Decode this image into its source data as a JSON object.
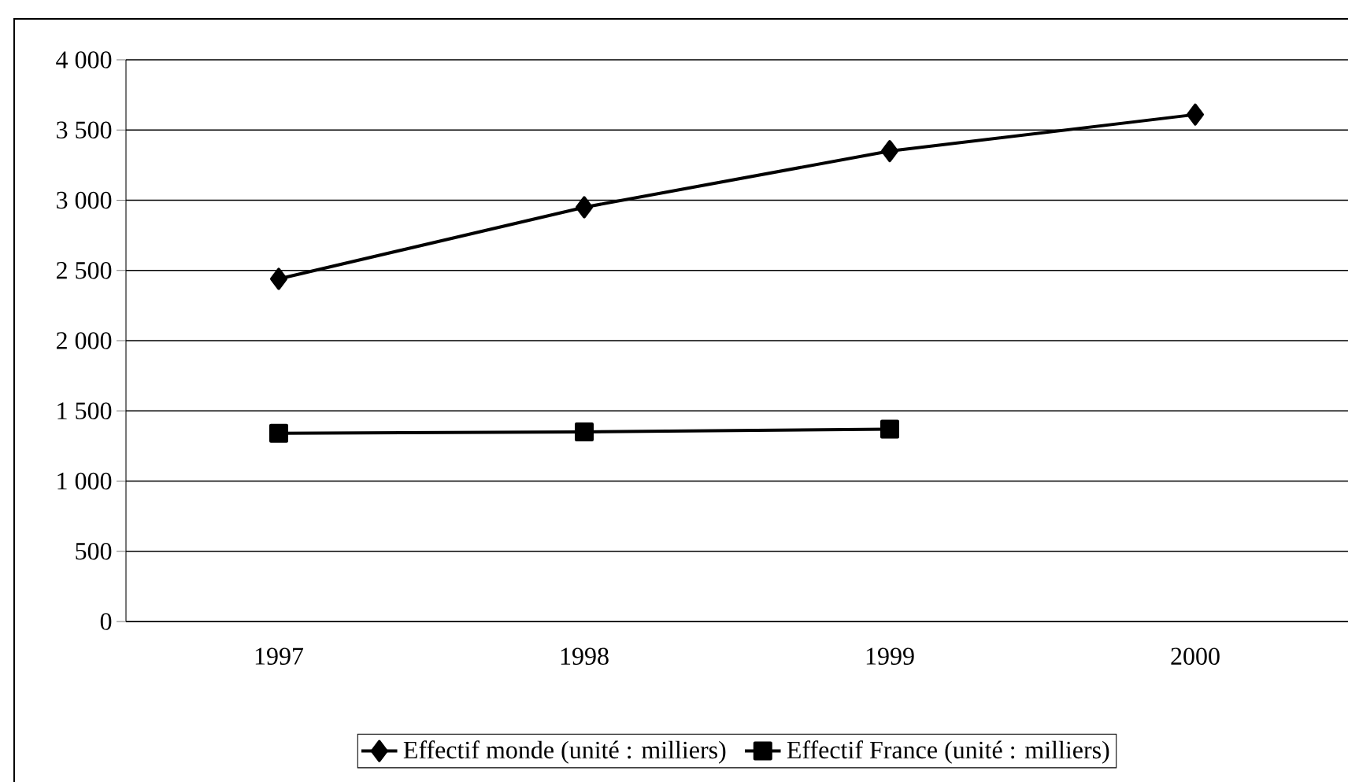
{
  "chart_data": {
    "type": "line",
    "categories": [
      "1997",
      "1998",
      "1999",
      "2000"
    ],
    "series": [
      {
        "name": "Effectif monde (unité : milliers)",
        "color": "#000000",
        "marker": "diamond",
        "values": [
          2440,
          2950,
          3350,
          3610
        ]
      },
      {
        "name": "Effectif France (unité : milliers)",
        "color": "#000000",
        "marker": "square",
        "values": [
          1340,
          1350,
          1370,
          null
        ]
      }
    ],
    "ylim": [
      0,
      4000
    ],
    "yticks": [
      0,
      500,
      {
        "value": 1000,
        "label": "1 000"
      },
      {
        "value": 1500,
        "label": "1 500"
      },
      {
        "value": 2000,
        "label": "2 000"
      },
      {
        "value": 2500,
        "label": "2 500"
      },
      {
        "value": 3000,
        "label": "3 000"
      },
      {
        "value": 3500,
        "label": "3 500"
      },
      {
        "value": 4000,
        "label": "4 000"
      }
    ],
    "grid": "y",
    "legend": "bottom",
    "line_style": "solid"
  }
}
